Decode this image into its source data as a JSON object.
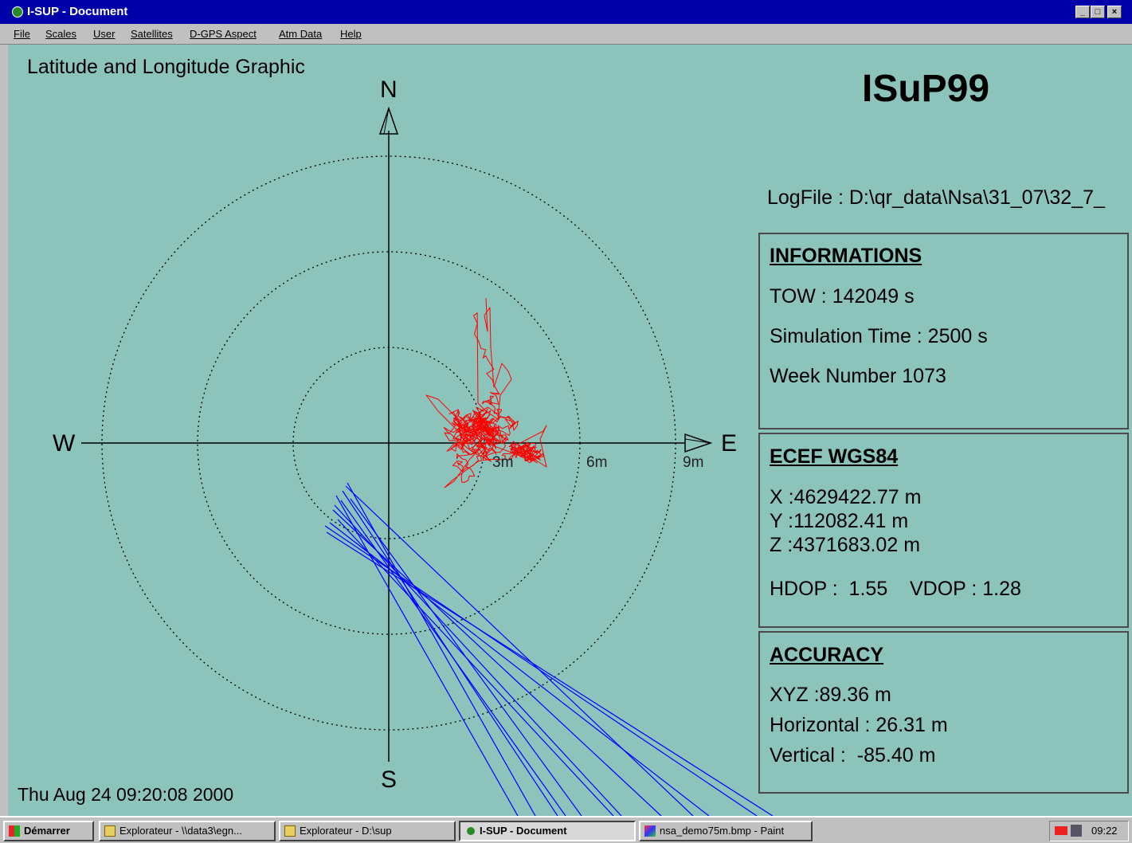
{
  "window": {
    "title": "I-SUP - Document",
    "controls": [
      "_",
      "□",
      "×"
    ]
  },
  "menu": [
    "File",
    "Scales",
    "User",
    "Satellites",
    "D-GPS Aspect",
    "Atm Data",
    "Help"
  ],
  "graphic": {
    "title": "Latitude and Longitude Graphic",
    "compass": {
      "north": "N",
      "south": "S",
      "east": "E",
      "west": "W"
    },
    "ring_labels": [
      "3m",
      "6m",
      "9m"
    ],
    "timestamp": "Thu Aug 24 09:20:08 2000"
  },
  "header": {
    "app_name": "ISuP99",
    "logfile": "LogFile : D:\\qr_data\\Nsa\\31_07\\32_7_"
  },
  "panels": {
    "informations": {
      "title": "INFORMATIONS",
      "tow": "TOW :  142049 s",
      "sim_time": "Simulation Time : 2500 s",
      "week": "Week Number 1073"
    },
    "ecef": {
      "title": "ECEF WGS84",
      "x": "X :4629422.77 m",
      "y": "Y :112082.41 m",
      "z": "Z :4371683.02 m",
      "dop": "HDOP :  1.55    VDOP : 1.28"
    },
    "accuracy": {
      "title": "ACCURACY",
      "xyz": "XYZ :89.36 m",
      "horizontal": "Horizontal : 26.31 m",
      "vertical": "Vertical :  -85.40 m"
    }
  },
  "colors": {
    "background": "#8cc4bc",
    "trace_red": "#ff0000",
    "trace_blue": "#0000ff",
    "titlebar": "#0000a8"
  },
  "taskbar": {
    "start": "Démarrer",
    "items": [
      {
        "label": "Explorateur - \\\\data3\\egn..."
      },
      {
        "label": "Explorateur - D:\\sup"
      },
      {
        "label": "I-SUP - Document",
        "active": true
      },
      {
        "label": "nsa_demo75m.bmp - Paint"
      }
    ],
    "clock": "09:22"
  }
}
